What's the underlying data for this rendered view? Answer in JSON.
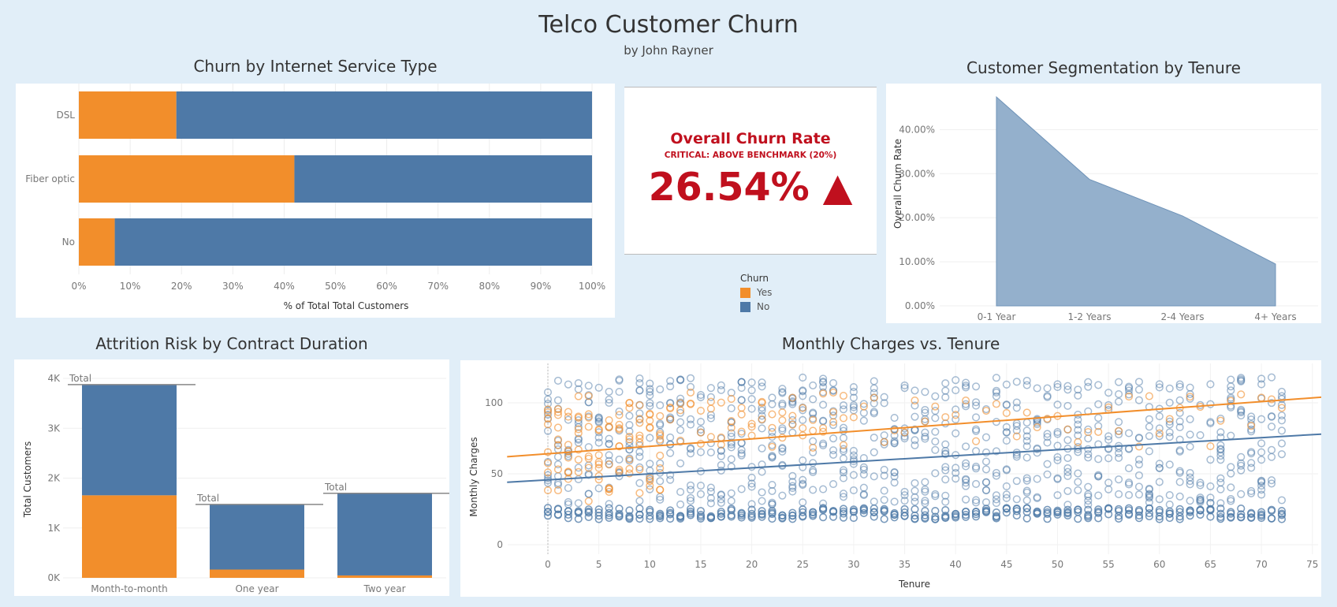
{
  "header": {
    "title": "Telco Customer Churn",
    "subtitle": "by John Rayner"
  },
  "colors": {
    "yes": "#f28e2b",
    "no": "#4e79a7",
    "kpi": "#c0101e",
    "area": "#8eacc9"
  },
  "kpi": {
    "title": "Overall Churn Rate",
    "subtitle": "CRITICAL: ABOVE BENCHMARK (20%)",
    "value": "26.54% ▲"
  },
  "legend": {
    "title": "Churn",
    "items": [
      {
        "label": "Yes",
        "color": "#f28e2b"
      },
      {
        "label": "No",
        "color": "#4e79a7"
      }
    ]
  },
  "chart_data": [
    {
      "id": "internet",
      "type": "bar",
      "orientation": "horizontal",
      "stacked": true,
      "title": "Churn by Internet Service Type",
      "xlabel": "% of Total Total Customers",
      "ylabel": "",
      "categories": [
        "DSL",
        "Fiber optic",
        "No"
      ],
      "series": [
        {
          "name": "Yes",
          "values": [
            19,
            42,
            7
          ]
        },
        {
          "name": "No",
          "values": [
            81,
            58,
            93
          ]
        }
      ],
      "xlim": [
        0,
        100
      ],
      "xticks": [
        "0%",
        "10%",
        "20%",
        "30%",
        "40%",
        "50%",
        "60%",
        "70%",
        "80%",
        "90%",
        "100%"
      ]
    },
    {
      "id": "tenure",
      "type": "area",
      "title": "Customer Segmentation by Tenure",
      "xlabel": "",
      "ylabel": "Overall Churn Rate",
      "categories": [
        "0-1 Year",
        "1-2 Years",
        "2-4 Years",
        "4+ Years"
      ],
      "values": [
        47.4,
        28.7,
        20.4,
        9.5
      ],
      "ylim": [
        0,
        47.4
      ],
      "yticks": [
        0,
        10,
        20,
        30,
        40
      ],
      "ytick_labels": [
        "0.00%",
        "10.00%",
        "20.00%",
        "30.00%",
        "40.00%"
      ]
    },
    {
      "id": "contract",
      "type": "bar",
      "stacked": true,
      "title": "Attrition Risk by Contract Duration",
      "xlabel": "",
      "ylabel": "Total Customers",
      "categories": [
        "Month-to-month",
        "One year",
        "Two year"
      ],
      "series": [
        {
          "name": "Yes",
          "values": [
            1655,
            166,
            48
          ]
        },
        {
          "name": "No",
          "values": [
            2220,
            1307,
            1647
          ]
        }
      ],
      "ylim": [
        0,
        4000
      ],
      "yticks": [
        0,
        1000,
        2000,
        3000,
        4000
      ],
      "ytick_labels": [
        "0K",
        "1K",
        "2K",
        "3K",
        "4K"
      ],
      "total_label": "Total"
    },
    {
      "id": "scatter",
      "type": "scatter",
      "title": "Monthly Charges vs. Tenure",
      "xlabel": "Tenure",
      "ylabel": "Monthly Charges",
      "xlim": [
        -4,
        76
      ],
      "ylim": [
        0,
        120
      ],
      "xticks": [
        0,
        5,
        10,
        15,
        20,
        25,
        30,
        35,
        40,
        45,
        50,
        55,
        60,
        65,
        70,
        75
      ],
      "yticks": [
        0,
        50,
        100
      ],
      "trendlines": [
        {
          "name": "Yes",
          "x": [
            -4,
            76
          ],
          "y": [
            62,
            104
          ]
        },
        {
          "name": "No",
          "x": [
            -4,
            76
          ],
          "y": [
            44,
            78
          ]
        }
      ],
      "point_clusters": [
        {
          "name": "No",
          "tenure_range": [
            0,
            72
          ],
          "charge_range": [
            18,
            26
          ]
        },
        {
          "name": "No",
          "tenure_range": [
            0,
            72
          ],
          "charge_range": [
            28,
            118
          ]
        },
        {
          "name": "Yes",
          "tenure_range": [
            0,
            72
          ],
          "charge_range": [
            68,
            108
          ]
        }
      ]
    }
  ]
}
